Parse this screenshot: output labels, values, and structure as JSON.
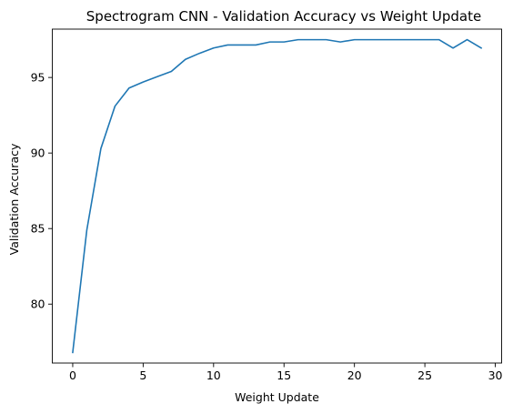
{
  "chart_data": {
    "type": "line",
    "title": "Spectrogram CNN - Validation Accuracy vs Weight Update",
    "xlabel": "Weight Update",
    "ylabel": "Validation Accuracy",
    "xlim": [
      -1.45,
      30.45
    ],
    "ylim": [
      76.1,
      98.2
    ],
    "xticks": [
      0,
      5,
      10,
      15,
      20,
      25,
      30
    ],
    "yticks": [
      80,
      85,
      90,
      95
    ],
    "grid": false,
    "line_color": "#1f77b4",
    "series": [
      {
        "x": [
          0,
          1,
          2,
          3,
          4,
          5,
          6,
          7,
          8,
          9,
          10,
          11,
          12,
          13,
          14,
          15,
          16,
          17,
          18,
          19,
          20,
          21,
          22,
          23,
          24,
          25,
          26,
          27,
          28,
          29
        ],
        "values": [
          76.8,
          84.9,
          90.3,
          93.1,
          94.3,
          94.7,
          95.05,
          95.4,
          96.2,
          96.6,
          96.95,
          97.15,
          97.15,
          97.15,
          97.35,
          97.35,
          97.5,
          97.5,
          97.5,
          97.35,
          97.5,
          97.5,
          97.5,
          97.5,
          97.5,
          97.5,
          97.5,
          96.95,
          97.5,
          96.95
        ]
      }
    ]
  }
}
